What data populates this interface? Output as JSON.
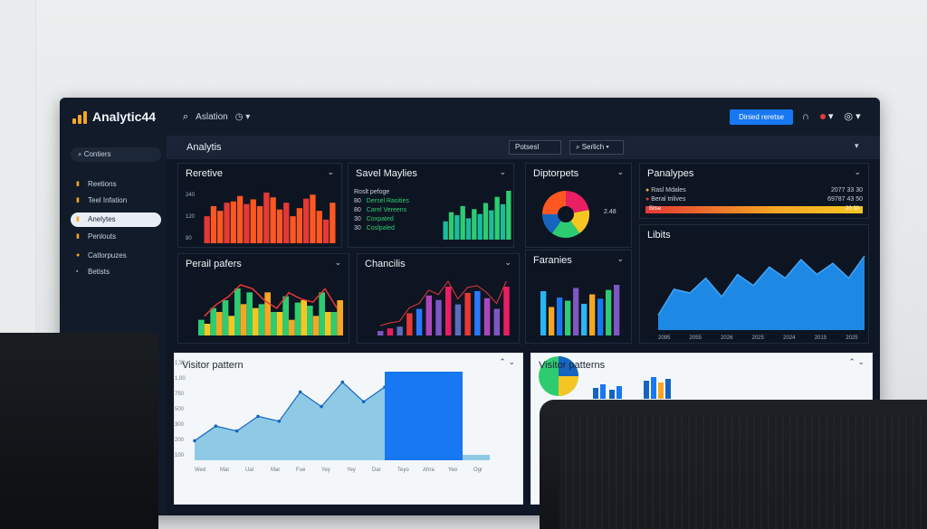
{
  "app": {
    "logo_text": "Analytic44",
    "search_label": "Aslation"
  },
  "header": {
    "primary_button": "Dinied reretse"
  },
  "sidebar": {
    "search": "Contiers",
    "items": [
      {
        "label": "Reetions"
      },
      {
        "label": "Teel Infation"
      },
      {
        "label": "Anelytes"
      },
      {
        "label": "Penlouts"
      },
      {
        "label": "Catlorpuzes"
      },
      {
        "label": "Betists"
      }
    ]
  },
  "subheader": {
    "title": "Analytis",
    "report_field": "Potsesl",
    "search_field": "Serlich"
  },
  "cards": {
    "reretive": {
      "title": "Reretive",
      "y_ticks": [
        "240",
        "120",
        "80"
      ]
    },
    "savel": {
      "title": "Savel Maylies",
      "legend_header": "Roslt pefoge",
      "rows": [
        {
          "num": "80",
          "label": "Dersel Rasities"
        },
        {
          "num": "80",
          "label": "Carel Vereens"
        },
        {
          "num": "30",
          "label": "Coxpated"
        },
        {
          "num": "30",
          "label": "Coslpaled"
        }
      ]
    },
    "diptorpets": {
      "title": "Diptorpets",
      "center_label": "2.48"
    },
    "panalypes": {
      "title": "Panalypes",
      "rows": [
        {
          "label": "Rasl Mdales",
          "value": "2077 33 30"
        },
        {
          "label": "Beral tnlives",
          "value": "69787 43 50"
        },
        {
          "label": "Bitse",
          "value": "20 30"
        }
      ]
    },
    "perail": {
      "title": "Perail pafers"
    },
    "chancilis": {
      "title": "Chancilis"
    },
    "faranies": {
      "title": "Faranies"
    },
    "libits": {
      "title": "Libits",
      "x_ticks": [
        "2095",
        "2055",
        "2026",
        "2025",
        "2024",
        "2015",
        "2025"
      ]
    },
    "visitor1": {
      "title": "Visitor pattern",
      "y_ticks": [
        "1,50",
        "1,00",
        "750",
        "500",
        "300",
        "200",
        "100"
      ],
      "x_ticks": [
        "Wed",
        "Mar",
        "Ual",
        "Mar",
        "Fue",
        "Yey",
        "Yey",
        "Dar",
        "Teyo",
        "Ahra",
        "Yeo",
        "Ogr"
      ]
    },
    "visitor2": {
      "title": "Visitor patterns"
    }
  },
  "colors": {
    "accent": "#1877f2",
    "logo": "#f5a623",
    "bg": "#0f1726",
    "card": "#0d1522"
  },
  "chart_data": [
    {
      "type": "bar",
      "title": "Reretive",
      "values": [
        40,
        55,
        48,
        60,
        62,
        70,
        58,
        65,
        55,
        75,
        68,
        50,
        60,
        40,
        52,
        66,
        72,
        48,
        35,
        60
      ]
    },
    {
      "type": "bar",
      "title": "Savel Maylies",
      "values": [
        30,
        45,
        40,
        55,
        35,
        50,
        42,
        60,
        48,
        70,
        58,
        80
      ]
    },
    {
      "type": "pie",
      "title": "Diptorpets",
      "values": [
        22,
        18,
        20,
        15,
        25
      ]
    },
    {
      "type": "bar",
      "title": "Perail pafers",
      "series": [
        {
          "name": "green",
          "values": [
            20,
            35,
            45,
            60,
            55,
            40,
            30,
            50,
            42,
            38,
            55,
            30
          ]
        },
        {
          "name": "orange",
          "values": [
            15,
            30,
            25,
            40,
            35,
            55,
            30,
            20,
            45,
            25,
            30,
            45
          ]
        }
      ]
    },
    {
      "type": "bar",
      "title": "Chancilis",
      "values": [
        5,
        8,
        10,
        25,
        30,
        45,
        40,
        55,
        35,
        48,
        50,
        42,
        30,
        55
      ]
    },
    {
      "type": "bar",
      "title": "Faranies",
      "values": [
        70,
        45,
        60,
        55,
        75,
        50,
        65,
        58,
        72,
        80
      ]
    },
    {
      "type": "area",
      "title": "Libits",
      "values": [
        20,
        55,
        50,
        70,
        45,
        75,
        60,
        85,
        70,
        95,
        75,
        90,
        70,
        100
      ]
    },
    {
      "type": "area",
      "title": "Visitor pattern",
      "values": [
        20,
        35,
        30,
        45,
        40,
        70,
        55,
        80,
        60,
        75
      ]
    }
  ]
}
